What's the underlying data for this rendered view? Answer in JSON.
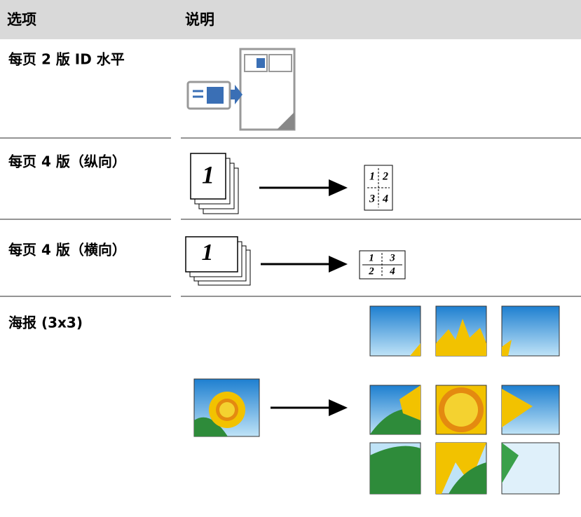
{
  "table": {
    "header": [
      "选项",
      "说明"
    ],
    "rows": [
      {
        "option": "每页 2 版 ID 水平"
      },
      {
        "option": "每页 4 版（纵向）",
        "source_page": "1",
        "result_pages": [
          "1",
          "2",
          "3",
          "4"
        ]
      },
      {
        "option": "每页 4 版（横向）",
        "source_page": "1",
        "result_pages": [
          "1",
          "3",
          "2",
          "4"
        ]
      },
      {
        "option": "海报 (3x3)"
      }
    ]
  }
}
